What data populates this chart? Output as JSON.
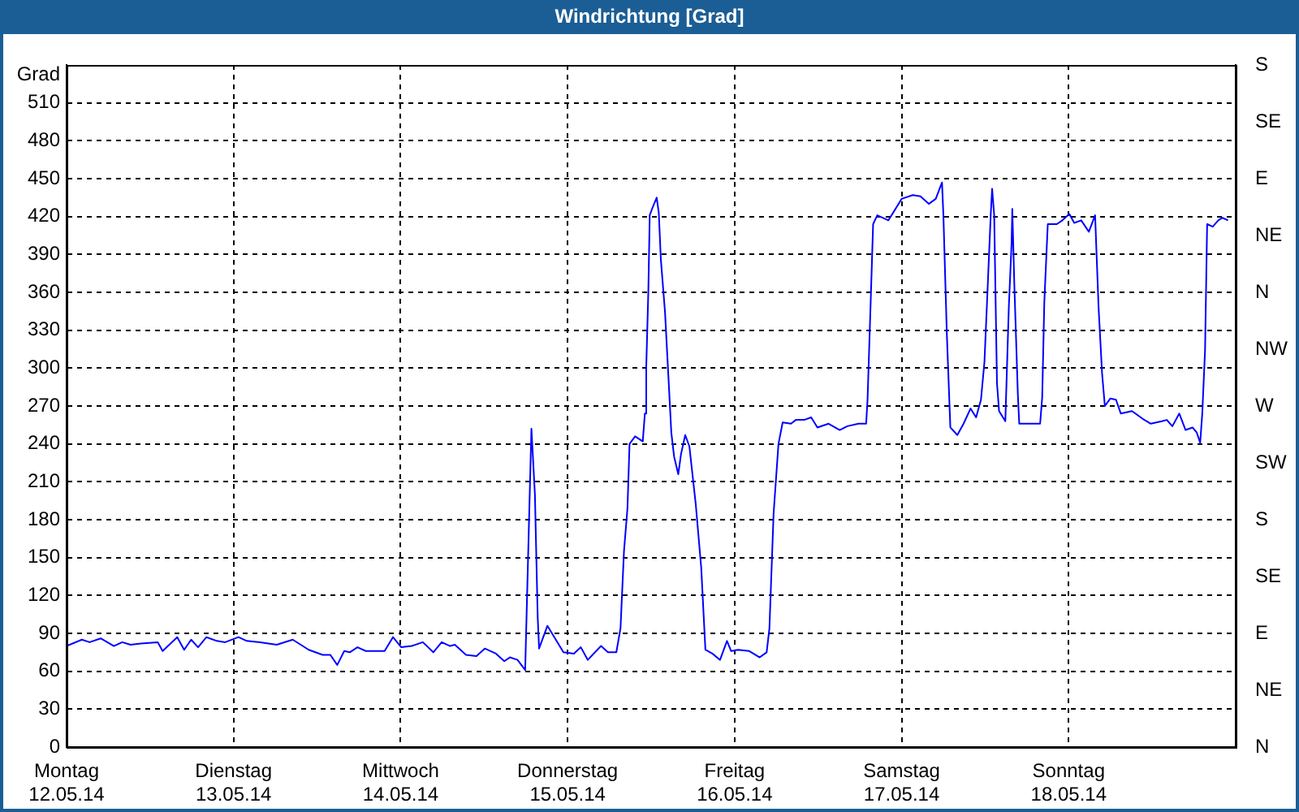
{
  "chart_data": {
    "type": "line",
    "title": "Windrichtung [Grad]",
    "ylabel": "Grad",
    "x": [
      "--05-12T00:00",
      "--05-12T02:12",
      "--05-12T03:18",
      "--05-12T04:54",
      "--05-12T06:48",
      "--05-12T08:00",
      "--05-12T09:12",
      "--05-12T10:42",
      "--05-12T13:06",
      "--05-12T13:48",
      "--05-12T15:54",
      "--05-12T16:54",
      "--05-12T17:54",
      "--05-12T18:54",
      "--05-12T20:06",
      "--05-12T21:36",
      "--05-12T22:48",
      "--05-13T00:42",
      "--05-13T01:54",
      "--05-13T03:48",
      "--05-13T06:12",
      "--05-13T08:30",
      "--05-13T10:48",
      "--05-13T12:48",
      "--05-13T13:54",
      "--05-13T14:54",
      "--05-13T15:54",
      "--05-13T16:42",
      "--05-13T17:48",
      "--05-13T19:00",
      "--05-13T21:42",
      "--05-13T22:54",
      "--05-14T00:06",
      "--05-14T01:36",
      "--05-14T03:12",
      "--05-14T04:42",
      "--05-14T05:54",
      "--05-14T07:06",
      "--05-14T07:48",
      "--05-14T09:24",
      "--05-14T10:54",
      "--05-14T12:06",
      "--05-14T13:42",
      "--05-14T14:54",
      "--05-14T15:42",
      "--05-14T16:48",
      "--05-14T17:54",
      "--05-14T18:48",
      "--05-14T19:18",
      "--05-14T19:42",
      "--05-14T19:54",
      "--05-14T21:06",
      "--05-14T22:12",
      "--05-14T23:24",
      "--05-15T00:54",
      "--05-15T01:54",
      "--05-15T02:54",
      "--05-15T04:48",
      "--05-15T05:48",
      "--05-15T07:00",
      "--05-15T07:36",
      "--05-15T08:06",
      "--05-15T08:36",
      "--05-15T08:54",
      "--05-15T09:42",
      "--05-15T10:48",
      "--05-15T11:06",
      "--05-15T11:18",
      "--05-15T11:36",
      "--05-15T11:48",
      "--05-15T12:12",
      "--05-15T12:48",
      "--05-15T13:06",
      "--05-15T13:24",
      "--05-15T14:00",
      "--05-15T14:36",
      "--05-15T14:54",
      "--05-15T15:18",
      "--05-15T15:54",
      "--05-15T16:18",
      "--05-15T16:54",
      "--05-15T17:30",
      "--05-15T18:24",
      "--05-15T19:12",
      "--05-15T19:48",
      "--05-15T20:48",
      "--05-15T21:54",
      "--05-15T22:54",
      "--05-15T23:30",
      "--05-16T00:30",
      "--05-16T02:06",
      "--05-16T03:36",
      "--05-16T04:36",
      "--05-16T05:00",
      "--05-16T05:36",
      "--05-16T06:18",
      "--05-16T06:54",
      "--05-16T08:06",
      "--05-16T08:48",
      "--05-16T10:00",
      "--05-16T11:00",
      "--05-16T11:54",
      "--05-16T13:30",
      "--05-16T15:06",
      "--05-16T16:12",
      "--05-16T17:48",
      "--05-16T18:54",
      "--05-16T19:06",
      "--05-16T19:36",
      "--05-16T19:54",
      "--05-16T20:30",
      "--05-16T22:06",
      "--05-16T23:00",
      "--05-17T00:00",
      "--05-17T01:36",
      "--05-17T02:42",
      "--05-17T03:54",
      "--05-17T04:54",
      "--05-17T05:48",
      "--05-17T06:00",
      "--05-17T06:30",
      "--05-17T07:00",
      "--05-17T08:00",
      "--05-17T08:54",
      "--05-17T09:54",
      "--05-17T10:42",
      "--05-17T11:24",
      "--05-17T11:54",
      "--05-17T12:18",
      "--05-17T12:48",
      "--05-17T13:00",
      "--05-17T13:18",
      "--05-17T13:42",
      "--05-17T14:00",
      "--05-17T14:54",
      "--05-17T15:24",
      "--05-17T15:48",
      "--05-17T15:54",
      "--05-17T16:12",
      "--05-17T16:42",
      "--05-17T16:54",
      "--05-17T19:54",
      "--05-17T20:12",
      "--05-17T20:30",
      "--05-17T21:00",
      "--05-17T22:18",
      "--05-17T23:06",
      "--05-18T00:06",
      "--05-18T00:48",
      "--05-18T01:48",
      "--05-18T02:54",
      "--05-18T03:48",
      "--05-18T04:18",
      "--05-18T04:48",
      "--05-18T05:12",
      "--05-18T06:00",
      "--05-18T06:48",
      "--05-18T07:30",
      "--05-18T09:06",
      "--05-18T10:36",
      "--05-18T11:48",
      "--05-18T13:24",
      "--05-18T14:06",
      "--05-18T14:54",
      "--05-18T15:54",
      "--05-18T16:48",
      "--05-18T17:48",
      "--05-18T18:24",
      "--05-18T18:54",
      "--05-18T19:12",
      "--05-18T19:36",
      "--05-18T19:54",
      "--05-18T20:42",
      "--05-18T21:30",
      "--05-18T22:06",
      "--05-18T22:54"
    ],
    "series": [
      {
        "color": "#0000ff",
        "values": [
          80,
          85,
          83,
          86,
          80,
          83,
          81,
          82,
          83,
          76,
          87,
          77,
          85,
          79,
          87,
          84,
          83,
          87,
          84,
          83,
          81,
          85,
          77,
          73,
          73,
          65,
          76,
          75,
          79,
          76,
          76,
          87,
          79,
          80,
          83,
          75,
          83,
          80,
          81,
          73,
          72,
          78,
          74,
          68,
          71,
          69,
          61,
          252,
          200,
          103,
          78,
          96,
          86,
          75,
          74,
          79,
          69,
          80,
          75,
          75,
          94,
          155,
          189,
          240,
          246,
          242,
          264,
          301,
          361,
          421,
          427,
          435,
          423,
          386,
          344,
          281,
          249,
          230,
          216,
          232,
          247,
          238,
          193,
          142,
          77,
          74,
          69,
          84,
          76,
          77,
          76,
          71,
          75,
          94,
          185,
          240,
          257,
          256,
          259,
          259,
          261,
          253,
          256,
          251,
          254,
          256,
          256,
          275,
          361,
          414,
          421,
          417,
          425,
          434,
          437,
          436,
          430,
          434,
          447,
          421,
          326,
          253,
          247,
          256,
          268,
          261,
          275,
          305,
          356,
          421,
          442,
          421,
          288,
          266,
          258,
          348,
          399,
          426,
          365,
          279,
          256,
          256,
          277,
          352,
          414,
          414,
          417,
          422,
          415,
          417,
          408,
          421,
          348,
          296,
          270,
          276,
          275,
          264,
          266,
          260,
          256,
          258,
          259,
          254,
          264,
          251,
          253,
          249,
          241,
          264,
          314,
          414,
          412,
          417,
          419,
          417
        ]
      }
    ],
    "xlim": [
      "--05-12",
      "--05-19"
    ],
    "xticks": [
      {
        "value": "--05-12",
        "label": "Montag\n12.05.14"
      },
      {
        "value": "--05-13",
        "label": "Dienstag\n13.05.14"
      },
      {
        "value": "--05-14",
        "label": "Mittwoch\n14.05.14"
      },
      {
        "value": "--05-15",
        "label": "Donnerstag\n15.05.14"
      },
      {
        "value": "--05-16",
        "label": "Freitag\n16.05.14"
      },
      {
        "value": "--05-17",
        "label": "Samstag\n17.05.14"
      },
      {
        "value": "--05-18",
        "label": "Sonntag\n18.05.14"
      }
    ],
    "ylim": [
      0,
      540
    ],
    "yticks": [
      0,
      30,
      60,
      90,
      120,
      150,
      180,
      210,
      240,
      270,
      300,
      330,
      360,
      390,
      420,
      450,
      480,
      510
    ],
    "y2_categories": [
      "S",
      "SE",
      "E",
      "NE",
      "N",
      "NW",
      "W",
      "SW",
      "S",
      "SE",
      "E",
      "NE",
      "N"
    ],
    "grid": true,
    "marker": "none"
  }
}
